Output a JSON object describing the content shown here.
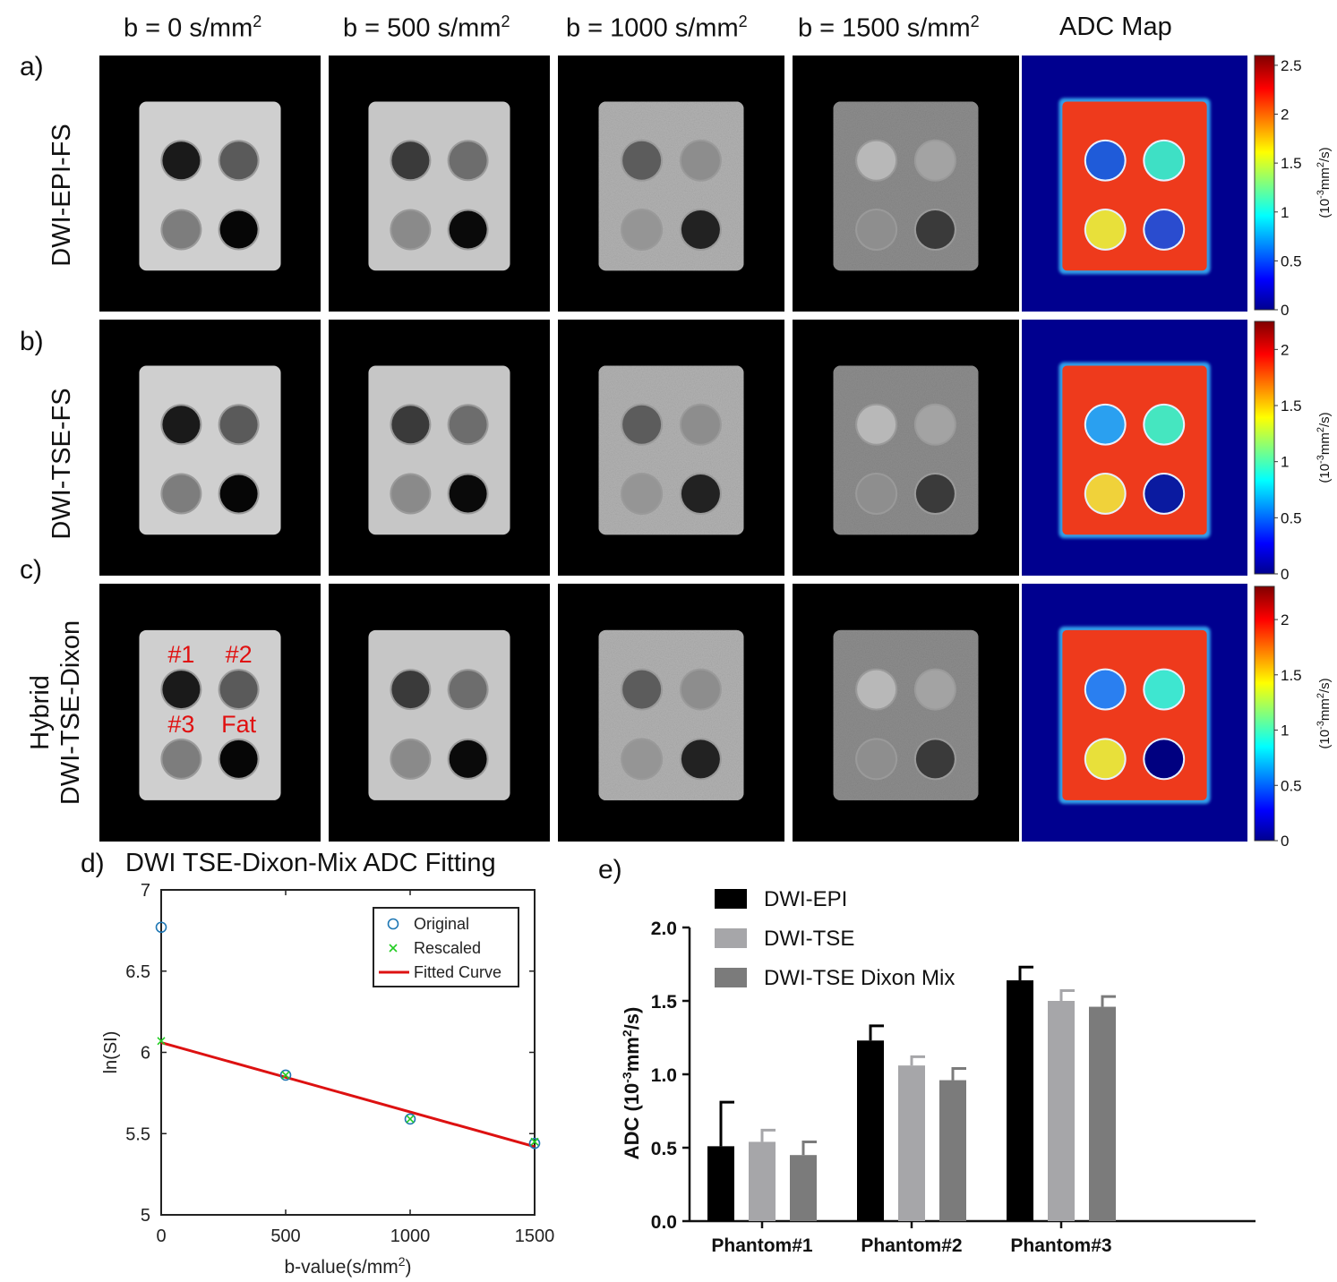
{
  "columns": [
    {
      "prefix": "b = 0 s/mm",
      "sup": "2"
    },
    {
      "prefix": "b = 500 s/mm",
      "sup": "2"
    },
    {
      "prefix": "b = 1000 s/mm",
      "sup": "2"
    },
    {
      "prefix": "b = 1500 s/mm",
      "sup": "2"
    },
    {
      "prefix": "ADC Map",
      "sup": ""
    }
  ],
  "rows": [
    {
      "letter": "a)",
      "label_lines": [
        "DWI-EPI-FS"
      ],
      "colorbar": {
        "ticks": [
          "2.5",
          "2",
          "1.5",
          "1",
          "0.5",
          "0"
        ],
        "values": [
          2.5,
          2,
          1.5,
          1,
          0.5,
          0
        ],
        "max": 2.6
      },
      "cb_label_pre": "(10",
      "cb_label_sup": "-3",
      "cb_label_post": "mm",
      "cb_label_sup2": "2",
      "cb_label_end": "/s)"
    },
    {
      "letter": "b)",
      "label_lines": [
        "DWI-TSE-FS"
      ],
      "colorbar": {
        "ticks": [
          "2",
          "1.5",
          "1",
          "0.5",
          "0"
        ],
        "values": [
          2,
          1.5,
          1,
          0.5,
          0
        ],
        "max": 2.25
      },
      "cb_label_pre": "(10",
      "cb_label_sup": "-3",
      "cb_label_post": "mm",
      "cb_label_sup2": "2",
      "cb_label_end": "/s)"
    },
    {
      "letter": "c)",
      "label_lines": [
        "Hybrid",
        "DWI-TSE-Dixon"
      ],
      "colorbar": {
        "ticks": [
          "2",
          "1.5",
          "1",
          "0.5",
          "0"
        ],
        "values": [
          2,
          1.5,
          1,
          0.5,
          0
        ],
        "max": 2.3
      },
      "cb_label_pre": "(10",
      "cb_label_sup": "-3",
      "cb_label_post": "mm",
      "cb_label_sup2": "2",
      "cb_label_end": "/s)"
    }
  ],
  "phantom_labels": [
    "#1",
    "#2",
    "#3",
    "Fat"
  ],
  "panel_d": {
    "letter": "d)",
    "chart_data": {
      "type": "line",
      "title": "DWI TSE-Dixon-Mix ADC Fitting",
      "xlabel_pre": "b-value(s/mm",
      "xlabel_sup": "2",
      "xlabel_post": ")",
      "ylabel": "ln(SI)",
      "xlim": [
        0,
        1500
      ],
      "ylim": [
        5,
        7
      ],
      "xticks": [
        0,
        500,
        1000,
        1500
      ],
      "yticks": [
        5,
        5.5,
        6,
        6.5,
        7
      ],
      "ytick_labels": [
        "5",
        "5.5",
        "6",
        "6.5",
        "7"
      ],
      "legend": [
        "Original",
        "Rescaled",
        "Fitted Curve"
      ],
      "series": [
        {
          "name": "Original",
          "x": [
            0,
            500,
            1000,
            1500
          ],
          "y": [
            6.77,
            5.86,
            5.59,
            5.44
          ],
          "marker": "circle",
          "color": "#1f77b4"
        },
        {
          "name": "Rescaled",
          "x": [
            0,
            500,
            1000,
            1500
          ],
          "y": [
            6.07,
            5.86,
            5.59,
            5.45
          ],
          "marker": "x",
          "color": "#22cc22"
        },
        {
          "name": "Fitted Curve",
          "x": [
            0,
            1500
          ],
          "y": [
            6.06,
            5.42
          ],
          "marker": "line",
          "color": "#dd1111"
        }
      ]
    }
  },
  "panel_e": {
    "letter": "e)",
    "chart_data": {
      "type": "bar",
      "ylabel_pre": "ADC (10",
      "ylabel_sup": "-3",
      "ylabel_mid": "mm",
      "ylabel_sup2": "2",
      "ylabel_post": "/s)",
      "ylim": [
        0,
        2.0
      ],
      "yticks": [
        "0.0",
        "0.5",
        "1.0",
        "1.5",
        "2.0"
      ],
      "ytick_values": [
        0,
        0.5,
        1.0,
        1.5,
        2.0
      ],
      "categories": [
        "Phantom#1",
        "Phantom#2",
        "Phantom#3"
      ],
      "series": [
        {
          "name": "DWI-EPI",
          "color": "#000000",
          "values": [
            0.51,
            1.23,
            1.64
          ],
          "errors": [
            0.3,
            0.1,
            0.09
          ]
        },
        {
          "name": "DWI-TSE",
          "color": "#a6a6a9",
          "values": [
            0.54,
            1.06,
            1.5
          ],
          "errors": [
            0.08,
            0.06,
            0.07
          ]
        },
        {
          "name": "DWI-TSE Dixon Mix",
          "color": "#7b7b7b",
          "values": [
            0.45,
            0.96,
            1.46
          ],
          "errors": [
            0.09,
            0.08,
            0.07
          ]
        }
      ]
    }
  }
}
